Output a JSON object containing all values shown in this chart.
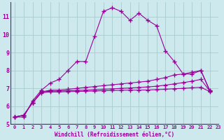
{
  "xlabel": "Windchill (Refroidissement éolien,°C)",
  "bg_color": "#cde9ee",
  "line_color": "#990099",
  "grid_color": "#aacccc",
  "xlim": [
    -0.5,
    23
  ],
  "ylim": [
    5.0,
    11.8
  ],
  "yticks": [
    5,
    6,
    7,
    8,
    9,
    10,
    11
  ],
  "xticks": [
    0,
    1,
    2,
    3,
    4,
    5,
    6,
    7,
    8,
    9,
    10,
    11,
    12,
    13,
    14,
    15,
    16,
    17,
    18,
    19,
    20,
    21,
    22,
    23
  ],
  "series": [
    {
      "x": [
        0,
        1,
        2,
        3,
        4,
        5,
        6,
        7,
        8,
        9,
        10,
        11,
        12,
        13,
        14,
        15,
        16,
        17,
        18,
        19,
        20,
        21,
        22
      ],
      "y": [
        5.4,
        5.4,
        6.3,
        6.9,
        7.3,
        7.5,
        8.0,
        8.5,
        8.5,
        9.9,
        11.3,
        11.5,
        11.3,
        10.8,
        11.2,
        10.8,
        10.5,
        9.1,
        8.5,
        7.8,
        7.8,
        8.0,
        6.9
      ]
    },
    {
      "x": [
        0,
        1,
        2,
        3,
        4,
        5,
        6,
        7,
        8,
        9,
        10,
        11,
        12,
        13,
        14,
        15,
        16,
        17,
        18,
        19,
        20,
        21,
        22
      ],
      "y": [
        5.4,
        5.5,
        6.2,
        6.8,
        6.9,
        6.9,
        6.95,
        7.0,
        7.05,
        7.1,
        7.15,
        7.2,
        7.25,
        7.3,
        7.35,
        7.4,
        7.5,
        7.6,
        7.75,
        7.8,
        7.9,
        8.0,
        6.85
      ]
    },
    {
      "x": [
        0,
        1,
        2,
        3,
        4,
        5,
        6,
        7,
        8,
        9,
        10,
        11,
        12,
        13,
        14,
        15,
        16,
        17,
        18,
        19,
        20,
        21,
        22
      ],
      "y": [
        5.4,
        5.5,
        6.2,
        6.8,
        6.85,
        6.85,
        6.87,
        6.89,
        6.9,
        6.92,
        6.95,
        6.97,
        7.0,
        7.02,
        7.05,
        7.08,
        7.12,
        7.18,
        7.25,
        7.32,
        7.4,
        7.5,
        6.85
      ]
    },
    {
      "x": [
        0,
        1,
        2,
        3,
        4,
        5,
        6,
        7,
        8,
        9,
        10,
        11,
        12,
        13,
        14,
        15,
        16,
        17,
        18,
        19,
        20,
        21,
        22
      ],
      "y": [
        5.4,
        5.5,
        6.2,
        6.75,
        6.8,
        6.8,
        6.82,
        6.83,
        6.84,
        6.85,
        6.87,
        6.88,
        6.89,
        6.9,
        6.9,
        6.91,
        6.93,
        6.95,
        6.98,
        7.0,
        7.03,
        7.06,
        6.82
      ]
    }
  ]
}
